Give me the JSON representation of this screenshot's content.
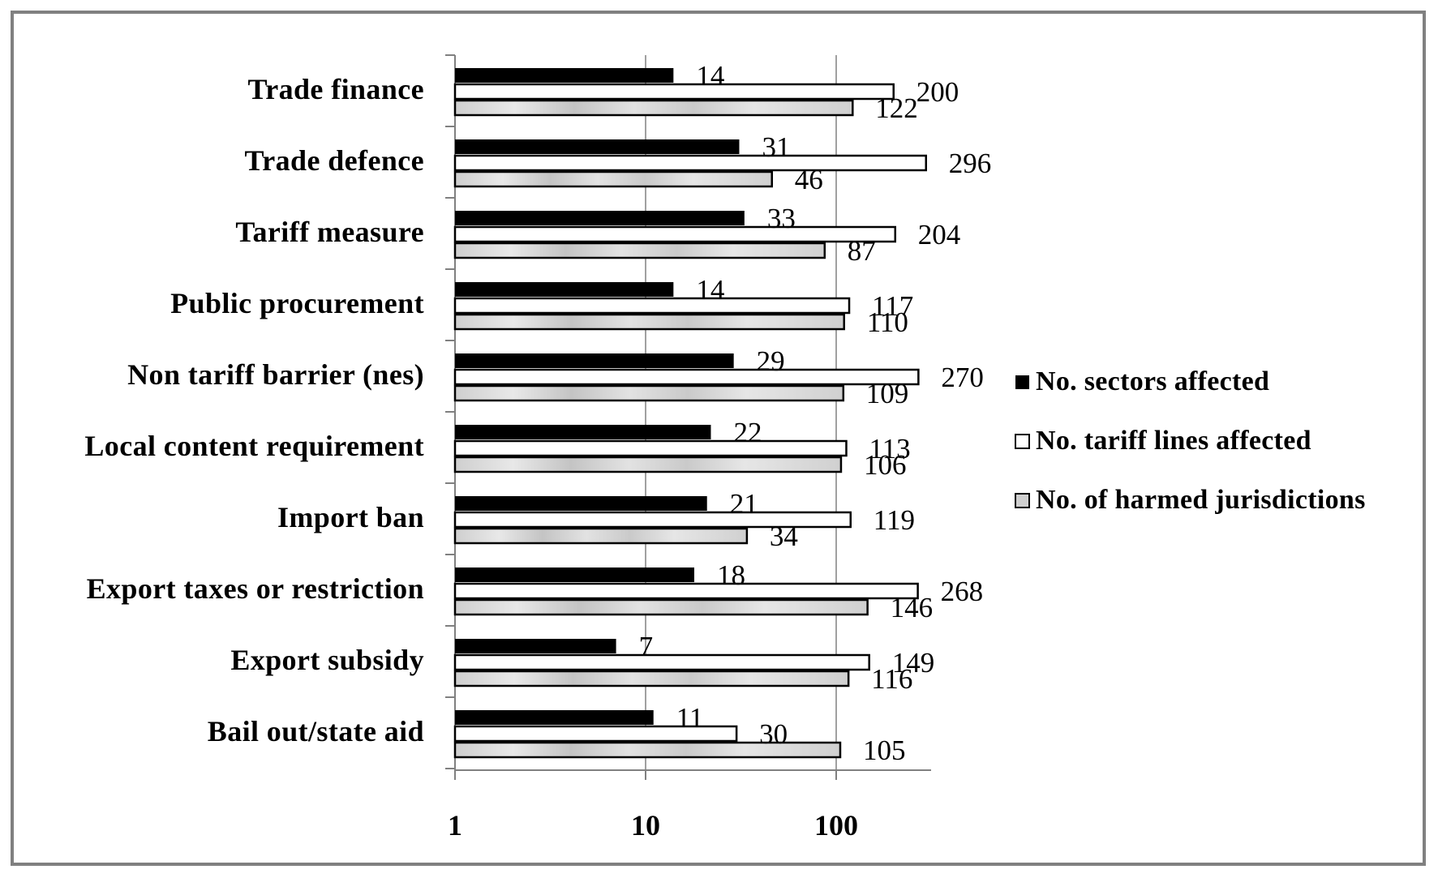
{
  "chart_data": {
    "type": "bar",
    "orientation": "horizontal",
    "x_scale": "log",
    "xlim": [
      1,
      300
    ],
    "x_ticks": [
      "1",
      "10",
      "100"
    ],
    "grid": "vertical major gridlines",
    "legend_position": "right",
    "categories": [
      "Trade finance",
      "Trade defence",
      "Tariff measure",
      "Public procurement",
      "Non tariff barrier (nes)",
      "Local content requirement",
      "Import ban",
      "Export taxes or restriction",
      "Export subsidy",
      "Bail out/state aid"
    ],
    "series": [
      {
        "name": "No. sectors affected",
        "color": "#000000",
        "values": [
          14,
          31,
          33,
          14,
          29,
          22,
          21,
          18,
          7,
          11
        ]
      },
      {
        "name": "No. tariff lines affected",
        "color": "#ffffff",
        "values": [
          200,
          296,
          204,
          117,
          270,
          113,
          119,
          268,
          149,
          30
        ]
      },
      {
        "name": "No. of harmed jurisdictions",
        "color": "#d8d8d8",
        "pattern": "textured grey",
        "values": [
          122,
          46,
          87,
          110,
          109,
          106,
          34,
          146,
          116,
          105
        ]
      }
    ]
  }
}
